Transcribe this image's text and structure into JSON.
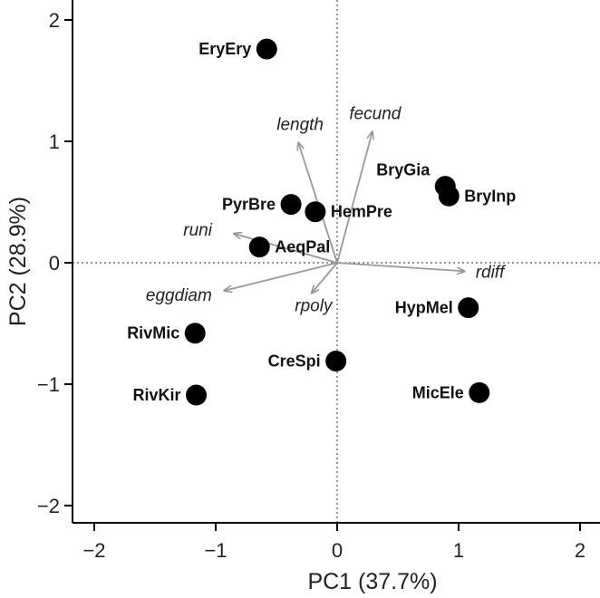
{
  "chart_data": {
    "type": "scatter",
    "title": "",
    "xlabel": "PC1 (37.7%)",
    "ylabel": "PC2 (28.9%)",
    "xlim": [
      -2.2,
      2.2
    ],
    "ylim": [
      -2.2,
      2.2
    ],
    "x_ticks": [
      -2,
      -1,
      0,
      1,
      2
    ],
    "y_ticks": [
      -2,
      -1,
      0,
      1,
      2
    ],
    "x_tick_labels": [
      "−2",
      "−1",
      "0",
      "1",
      "2"
    ],
    "y_tick_labels": [
      "−2",
      "−1",
      "0",
      "1",
      "2"
    ],
    "grid": false,
    "reference_lines": {
      "x": 0,
      "y": 0,
      "style": "dotted"
    },
    "point_color": "#000000",
    "arrow_color": "#999999",
    "points": [
      {
        "label": "EryEry",
        "x": -0.58,
        "y": 1.76
      },
      {
        "label": "BryGia",
        "x": 0.89,
        "y": 0.63
      },
      {
        "label": "BryInp",
        "x": 0.92,
        "y": 0.55
      },
      {
        "label": "PyrBre",
        "x": -0.38,
        "y": 0.48
      },
      {
        "label": "HemPre",
        "x": -0.18,
        "y": 0.42
      },
      {
        "label": "AeqPal",
        "x": -0.64,
        "y": 0.13
      },
      {
        "label": "HypMel",
        "x": 1.08,
        "y": -0.37
      },
      {
        "label": "RivMic",
        "x": -1.17,
        "y": -0.58
      },
      {
        "label": "CreSpi",
        "x": -0.01,
        "y": -0.81
      },
      {
        "label": "RivKir",
        "x": -1.16,
        "y": -1.09
      },
      {
        "label": "MicEle",
        "x": 1.17,
        "y": -1.07
      }
    ],
    "loadings": [
      {
        "label": "length",
        "x": -0.32,
        "y": 0.99
      },
      {
        "label": "fecund",
        "x": 0.29,
        "y": 1.08
      },
      {
        "label": "runi",
        "x": -0.85,
        "y": 0.24
      },
      {
        "label": "rdiff",
        "x": 1.05,
        "y": -0.07
      },
      {
        "label": "eggdiam",
        "x": -0.93,
        "y": -0.23
      },
      {
        "label": "rpoly",
        "x": -0.21,
        "y": -0.25
      }
    ]
  }
}
